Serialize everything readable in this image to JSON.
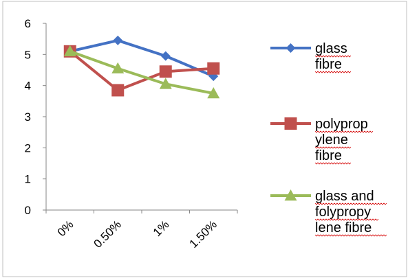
{
  "chart_data": {
    "type": "line",
    "title": "",
    "xlabel": "",
    "ylabel": "",
    "categories": [
      "0%",
      "0.50%",
      "1%",
      "1.50%"
    ],
    "ylim": [
      0,
      6
    ],
    "yticks": [
      "0",
      "1",
      "2",
      "3",
      "4",
      "5",
      "6"
    ],
    "grid": false,
    "legend_position": "right",
    "series": [
      {
        "name": "glass fibre",
        "name_lines": [
          "glass",
          "fibre"
        ],
        "values": [
          5.1,
          5.45,
          4.95,
          4.3
        ],
        "color": "#4472c4",
        "marker": "diamond"
      },
      {
        "name": "polypropylene fibre",
        "name_lines": [
          "polyprop",
          "ylene",
          "fibre"
        ],
        "values": [
          5.1,
          3.85,
          4.45,
          4.55
        ],
        "color": "#c0504d",
        "marker": "square"
      },
      {
        "name": "glass and folypropylene fibre",
        "name_lines": [
          "glass  and",
          "folypropy",
          "lene fibre"
        ],
        "values": [
          5.1,
          4.55,
          4.05,
          3.75
        ],
        "color": "#9bbb59",
        "marker": "triangle"
      }
    ]
  }
}
